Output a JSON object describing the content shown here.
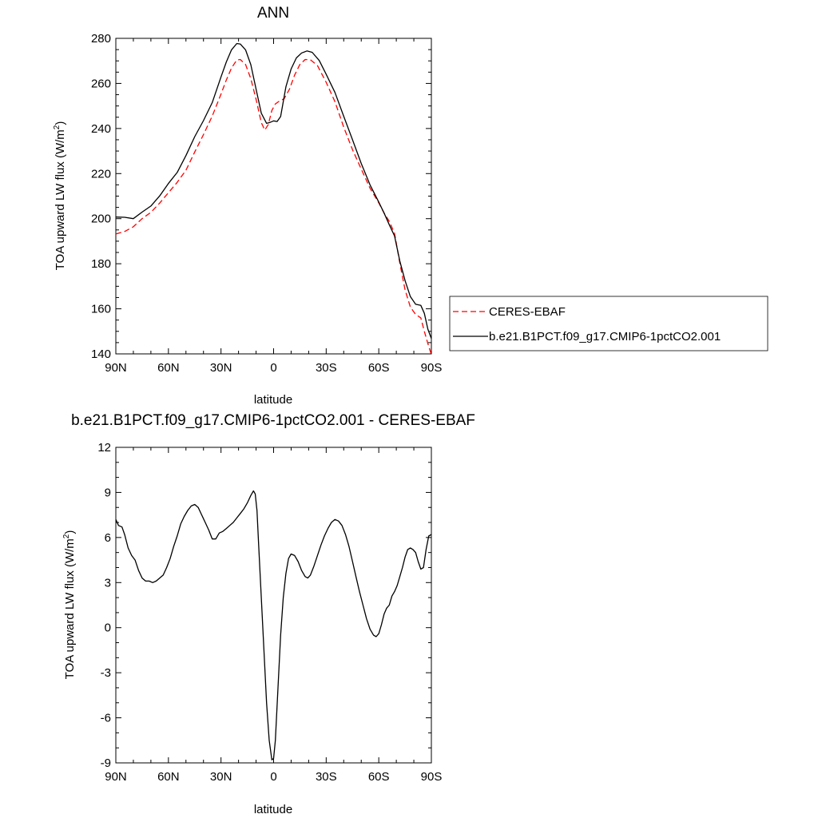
{
  "chart_data": [
    {
      "type": "line",
      "title": "ANN",
      "xlabel": "latitude",
      "ylabel": "TOA upward LW flux (W/m",
      "ylabel_sup": "2",
      "ylabel_close": ")",
      "xlim": [
        90,
        -90
      ],
      "ylim": [
        140,
        280
      ],
      "xticks": [
        90,
        60,
        30,
        0,
        -30,
        -60,
        -90
      ],
      "xtick_labels": [
        "90N",
        "60N",
        "30N",
        "0",
        "30S",
        "60S",
        "90S"
      ],
      "yticks": [
        140,
        160,
        180,
        200,
        220,
        240,
        260,
        280
      ],
      "ytick_labels": [
        "140",
        "160",
        "180",
        "200",
        "220",
        "240",
        "260",
        "280"
      ],
      "legend": "right",
      "series": [
        {
          "name": "CERES-EBAF",
          "color": "#ff0000",
          "dash": "dashed",
          "points": [
            [
              90,
              193.2
            ],
            [
              85,
              194.3
            ],
            [
              80,
              196.4
            ],
            [
              75,
              200.0
            ],
            [
              70,
              202.8
            ],
            [
              65,
              206.9
            ],
            [
              60,
              211.5
            ],
            [
              55,
              216.1
            ],
            [
              50,
              221.5
            ],
            [
              45,
              229.6
            ],
            [
              40,
              237.3
            ],
            [
              35,
              245.5
            ],
            [
              30,
              255.3
            ],
            [
              27,
              261.5
            ],
            [
              24,
              266.8
            ],
            [
              21,
              270.4
            ],
            [
              19,
              270.6
            ],
            [
              16,
              268.4
            ],
            [
              13,
              262.1
            ],
            [
              10,
              252.9
            ],
            [
              7,
              242.6
            ],
            [
              5,
              239.3
            ],
            [
              3,
              241.8
            ],
            [
              1,
              248.0
            ],
            [
              -1,
              250.9
            ],
            [
              -3,
              252.0
            ],
            [
              -6,
              253.2
            ],
            [
              -9,
              257.4
            ],
            [
              -12,
              263.7
            ],
            [
              -15,
              268.4
            ],
            [
              -18,
              270.6
            ],
            [
              -21,
              270.5
            ],
            [
              -25,
              267.9
            ],
            [
              -30,
              260.5
            ],
            [
              -35,
              251.9
            ],
            [
              -40,
              240.6
            ],
            [
              -45,
              230.6
            ],
            [
              -50,
              222.0
            ],
            [
              -55,
              213.5
            ],
            [
              -60,
              207.0
            ],
            [
              -63,
              202.5
            ],
            [
              -66,
              198.8
            ],
            [
              -69,
              193.5
            ],
            [
              -72,
              180.3
            ],
            [
              -75,
              168.4
            ],
            [
              -78,
              160.8
            ],
            [
              -81,
              157.5
            ],
            [
              -84,
              156.0
            ],
            [
              -86,
              150.0
            ],
            [
              -88,
              144.6
            ],
            [
              -90,
              139.7
            ]
          ]
        },
        {
          "name": "b.e21.B1PCT.f09_g17.CMIP6-1pctCO2.001",
          "color": "#000000",
          "dash": "solid",
          "points": [
            [
              90,
              200.7
            ],
            [
              85,
              200.6
            ],
            [
              80,
              200.0
            ],
            [
              75,
              202.9
            ],
            [
              70,
              205.6
            ],
            [
              65,
              210.1
            ],
            [
              60,
              215.6
            ],
            [
              55,
              220.5
            ],
            [
              50,
              228.0
            ],
            [
              45,
              236.4
            ],
            [
              40,
              243.5
            ],
            [
              35,
              251.5
            ],
            [
              30,
              262.9
            ],
            [
              27,
              269.5
            ],
            [
              24,
              274.9
            ],
            [
              21,
              277.7
            ],
            [
              19,
              277.5
            ],
            [
              16,
              274.9
            ],
            [
              13,
              268.3
            ],
            [
              10,
              257.4
            ],
            [
              7,
              246.8
            ],
            [
              4,
              242.3
            ],
            [
              2,
              242.7
            ],
            [
              0,
              243.4
            ],
            [
              -2,
              243.1
            ],
            [
              -4,
              245.3
            ],
            [
              -7,
              258.5
            ],
            [
              -10,
              266.4
            ],
            [
              -13,
              271.3
            ],
            [
              -16,
              273.5
            ],
            [
              -19,
              274.4
            ],
            [
              -22,
              273.8
            ],
            [
              -26,
              270.2
            ],
            [
              -30,
              264.1
            ],
            [
              -35,
              256.0
            ],
            [
              -40,
              245.4
            ],
            [
              -45,
              235.0
            ],
            [
              -50,
              224.5
            ],
            [
              -55,
              215.0
            ],
            [
              -60,
              207.3
            ],
            [
              -63,
              202.5
            ],
            [
              -66,
              197.3
            ],
            [
              -69,
              192.3
            ],
            [
              -72,
              181.2
            ],
            [
              -75,
              172.5
            ],
            [
              -78,
              165.4
            ],
            [
              -81,
              162.0
            ],
            [
              -84,
              161.5
            ],
            [
              -86,
              158.0
            ],
            [
              -88,
              151.0
            ],
            [
              -90,
              146.8
            ]
          ]
        }
      ]
    },
    {
      "type": "line",
      "title": "b.e21.B1PCT.f09_g17.CMIP6-1pctCO2.001 - CERES-EBAF",
      "xlabel": "latitude",
      "ylabel": "TOA upward LW flux (W/m",
      "ylabel_sup": "2",
      "ylabel_close": ")",
      "xlim": [
        90,
        -90
      ],
      "ylim": [
        -9,
        12
      ],
      "xticks": [
        90,
        60,
        30,
        0,
        -30,
        -60,
        -90
      ],
      "xtick_labels": [
        "90N",
        "60N",
        "30N",
        "0",
        "30S",
        "60S",
        "90S"
      ],
      "yticks": [
        -9,
        -6,
        -3,
        0,
        3,
        6,
        9,
        12
      ],
      "ytick_labels": [
        "-9",
        "-6",
        "-3",
        "0",
        "3",
        "6",
        "9",
        "12"
      ],
      "series": [
        {
          "color": "#000000",
          "dash": "solid",
          "points": [
            [
              90,
              7.2
            ],
            [
              88.5,
              6.8
            ],
            [
              86.5,
              6.7
            ],
            [
              85,
              6.2
            ],
            [
              83,
              5.3
            ],
            [
              81,
              4.8
            ],
            [
              79,
              4.5
            ],
            [
              77,
              3.8
            ],
            [
              75,
              3.3
            ],
            [
              73,
              3.1
            ],
            [
              71,
              3.1
            ],
            [
              69,
              3.0
            ],
            [
              67,
              3.1
            ],
            [
              65,
              3.3
            ],
            [
              63,
              3.5
            ],
            [
              61,
              4.0
            ],
            [
              59,
              4.6
            ],
            [
              57,
              5.4
            ],
            [
              55,
              6.1
            ],
            [
              53,
              6.9
            ],
            [
              51,
              7.4
            ],
            [
              49,
              7.8
            ],
            [
              47,
              8.1
            ],
            [
              45,
              8.2
            ],
            [
              43,
              8.0
            ],
            [
              41,
              7.5
            ],
            [
              39,
              7.0
            ],
            [
              37,
              6.5
            ],
            [
              35,
              5.9
            ],
            [
              33,
              5.9
            ],
            [
              31,
              6.3
            ],
            [
              29,
              6.4
            ],
            [
              27,
              6.6
            ],
            [
              25,
              6.8
            ],
            [
              23,
              7.0
            ],
            [
              21,
              7.3
            ],
            [
              19,
              7.6
            ],
            [
              17,
              7.9
            ],
            [
              15,
              8.3
            ],
            [
              13,
              8.8
            ],
            [
              11.5,
              9.1
            ],
            [
              10.5,
              8.9
            ],
            [
              9.5,
              7.8
            ],
            [
              8.5,
              5.5
            ],
            [
              7,
              2.0
            ],
            [
              5.5,
              -1.5
            ],
            [
              4,
              -5.0
            ],
            [
              2.5,
              -7.5
            ],
            [
              1,
              -8.8
            ],
            [
              0,
              -8.7
            ],
            [
              -1,
              -7.5
            ],
            [
              -2.5,
              -4.0
            ],
            [
              -4,
              -0.5
            ],
            [
              -5.5,
              2.0
            ],
            [
              -7,
              3.6
            ],
            [
              -8.5,
              4.6
            ],
            [
              -10,
              4.9
            ],
            [
              -12,
              4.8
            ],
            [
              -14,
              4.4
            ],
            [
              -16,
              3.8
            ],
            [
              -18,
              3.4
            ],
            [
              -19.5,
              3.3
            ],
            [
              -21,
              3.5
            ],
            [
              -23,
              4.1
            ],
            [
              -25,
              4.8
            ],
            [
              -27,
              5.5
            ],
            [
              -29,
              6.1
            ],
            [
              -31,
              6.6
            ],
            [
              -33,
              7.0
            ],
            [
              -35,
              7.2
            ],
            [
              -37,
              7.1
            ],
            [
              -39,
              6.8
            ],
            [
              -41,
              6.2
            ],
            [
              -43,
              5.4
            ],
            [
              -45,
              4.4
            ],
            [
              -47,
              3.4
            ],
            [
              -49,
              2.4
            ],
            [
              -51,
              1.5
            ],
            [
              -53,
              0.6
            ],
            [
              -55,
              -0.1
            ],
            [
              -57,
              -0.5
            ],
            [
              -58.5,
              -0.6
            ],
            [
              -60,
              -0.4
            ],
            [
              -61.5,
              0.2
            ],
            [
              -63,
              0.9
            ],
            [
              -64.5,
              1.3
            ],
            [
              -66,
              1.5
            ],
            [
              -67.5,
              2.1
            ],
            [
              -69,
              2.4
            ],
            [
              -70.5,
              2.8
            ],
            [
              -72,
              3.4
            ],
            [
              -73.5,
              4.0
            ],
            [
              -75,
              4.7
            ],
            [
              -76.5,
              5.2
            ],
            [
              -78,
              5.3
            ],
            [
              -79.5,
              5.2
            ],
            [
              -81,
              5.0
            ],
            [
              -82.5,
              4.4
            ],
            [
              -84,
              3.9
            ],
            [
              -85.5,
              4.0
            ],
            [
              -87,
              5.2
            ],
            [
              -88.5,
              6.1
            ],
            [
              -90,
              6.2
            ]
          ]
        }
      ]
    }
  ]
}
